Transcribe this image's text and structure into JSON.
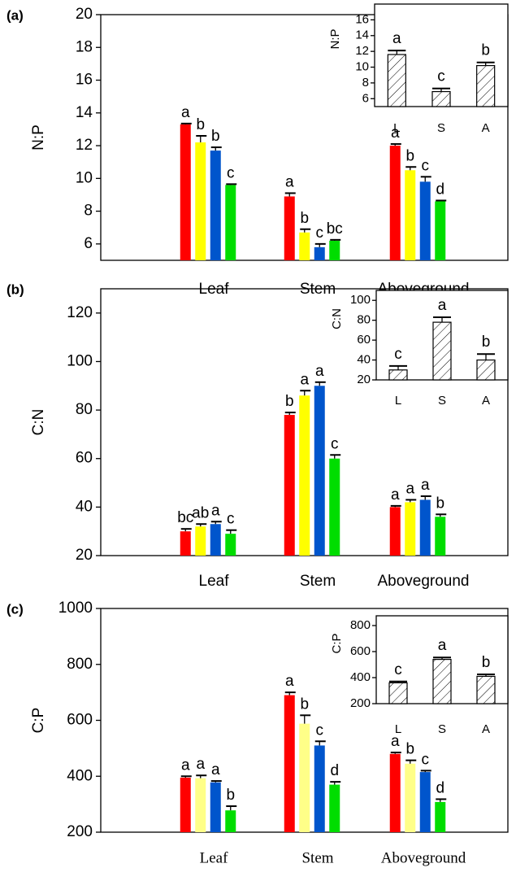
{
  "chart_data": [
    {
      "type": "bar",
      "panel_label": "(a)",
      "ylabel": "N:P",
      "categories": [
        "Leaf",
        "Stem",
        "Aboveground"
      ],
      "series": [
        {
          "color": "#ff0000",
          "values": [
            13.3,
            8.9,
            12.0
          ],
          "errors": [
            0.05,
            0.2,
            0.1
          ],
          "letters": [
            "a",
            "a",
            "a"
          ]
        },
        {
          "color": "#ffff00",
          "values": [
            12.2,
            6.7,
            10.5
          ],
          "errors": [
            0.4,
            0.2,
            0.2
          ],
          "letters": [
            "b",
            "b",
            "b"
          ]
        },
        {
          "color": "#0055cc",
          "values": [
            11.7,
            5.8,
            9.8
          ],
          "errors": [
            0.2,
            0.2,
            0.3
          ],
          "letters": [
            "b",
            "c",
            "c"
          ]
        },
        {
          "color": "#00dd00",
          "values": [
            9.6,
            6.2,
            8.6
          ],
          "errors": [
            0.05,
            0.05,
            0.05
          ],
          "letters": [
            "c",
            "bc",
            "d"
          ]
        }
      ],
      "ylim": [
        5,
        20
      ],
      "yticks": [
        6,
        8,
        10,
        12,
        14,
        16,
        18,
        20
      ],
      "inset": {
        "ylabel": "N:P",
        "categories": [
          "L",
          "S",
          "A"
        ],
        "values": [
          11.6,
          6.9,
          10.2
        ],
        "errors": [
          0.5,
          0.4,
          0.4
        ],
        "letters": [
          "a",
          "c",
          "b"
        ],
        "ylim": [
          5,
          18
        ],
        "yticks": [
          6,
          8,
          10,
          12,
          14,
          16
        ]
      }
    },
    {
      "type": "bar",
      "panel_label": "(b)",
      "ylabel": "C:N",
      "categories": [
        "Leaf",
        "Stem",
        "Aboveground"
      ],
      "series": [
        {
          "color": "#ff0000",
          "values": [
            30,
            78,
            40
          ],
          "errors": [
            1,
            1,
            0.5
          ],
          "letters": [
            "bc",
            "b",
            "a"
          ]
        },
        {
          "color": "#ffff00",
          "values": [
            32,
            86,
            42
          ],
          "errors": [
            1,
            2,
            1
          ],
          "letters": [
            "ab",
            "a",
            "a"
          ]
        },
        {
          "color": "#0055cc",
          "values": [
            33,
            90,
            43
          ],
          "errors": [
            1,
            1.5,
            1.5
          ],
          "letters": [
            "a",
            "a",
            "a"
          ]
        },
        {
          "color": "#00dd00",
          "values": [
            29,
            60,
            36
          ],
          "errors": [
            1.5,
            1.5,
            1
          ],
          "letters": [
            "c",
            "c",
            "b"
          ]
        }
      ],
      "ylim": [
        20,
        130
      ],
      "yticks": [
        20,
        40,
        60,
        80,
        100,
        120
      ],
      "inset": {
        "ylabel": "C:N",
        "categories": [
          "L",
          "S",
          "A"
        ],
        "values": [
          30,
          78,
          40
        ],
        "errors": [
          4,
          5,
          6
        ],
        "letters": [
          "c",
          "a",
          "b"
        ],
        "ylim": [
          20,
          110
        ],
        "yticks": [
          20,
          40,
          60,
          80,
          100
        ]
      }
    },
    {
      "type": "bar",
      "panel_label": "(c)",
      "ylabel": "C:P",
      "categories": [
        "Leaf",
        "Stem",
        "Aboveground"
      ],
      "series": [
        {
          "color": "#ff0000",
          "values": [
            395,
            690,
            480
          ],
          "errors": [
            5,
            10,
            5
          ],
          "letters": [
            "a",
            "a",
            "a"
          ]
        },
        {
          "color": "#ffff88",
          "values": [
            393,
            588,
            445
          ],
          "errors": [
            10,
            30,
            12
          ],
          "letters": [
            "a",
            "b",
            "b"
          ]
        },
        {
          "color": "#0055cc",
          "values": [
            378,
            510,
            415
          ],
          "errors": [
            5,
            15,
            5
          ],
          "letters": [
            "a",
            "c",
            "c"
          ]
        },
        {
          "color": "#00dd00",
          "values": [
            278,
            370,
            308
          ],
          "errors": [
            15,
            10,
            10
          ],
          "letters": [
            "b",
            "d",
            "d"
          ]
        }
      ],
      "ylim": [
        200,
        1000
      ],
      "yticks": [
        200,
        400,
        600,
        800,
        1000
      ],
      "inset": {
        "ylabel": "C:P",
        "categories": [
          "L",
          "S",
          "A"
        ],
        "values": [
          360,
          540,
          410
        ],
        "errors": [
          10,
          15,
          15
        ],
        "letters": [
          "c",
          "a",
          "b"
        ],
        "ylim": [
          200,
          875
        ],
        "yticks": [
          200,
          400,
          600,
          800
        ]
      }
    }
  ]
}
